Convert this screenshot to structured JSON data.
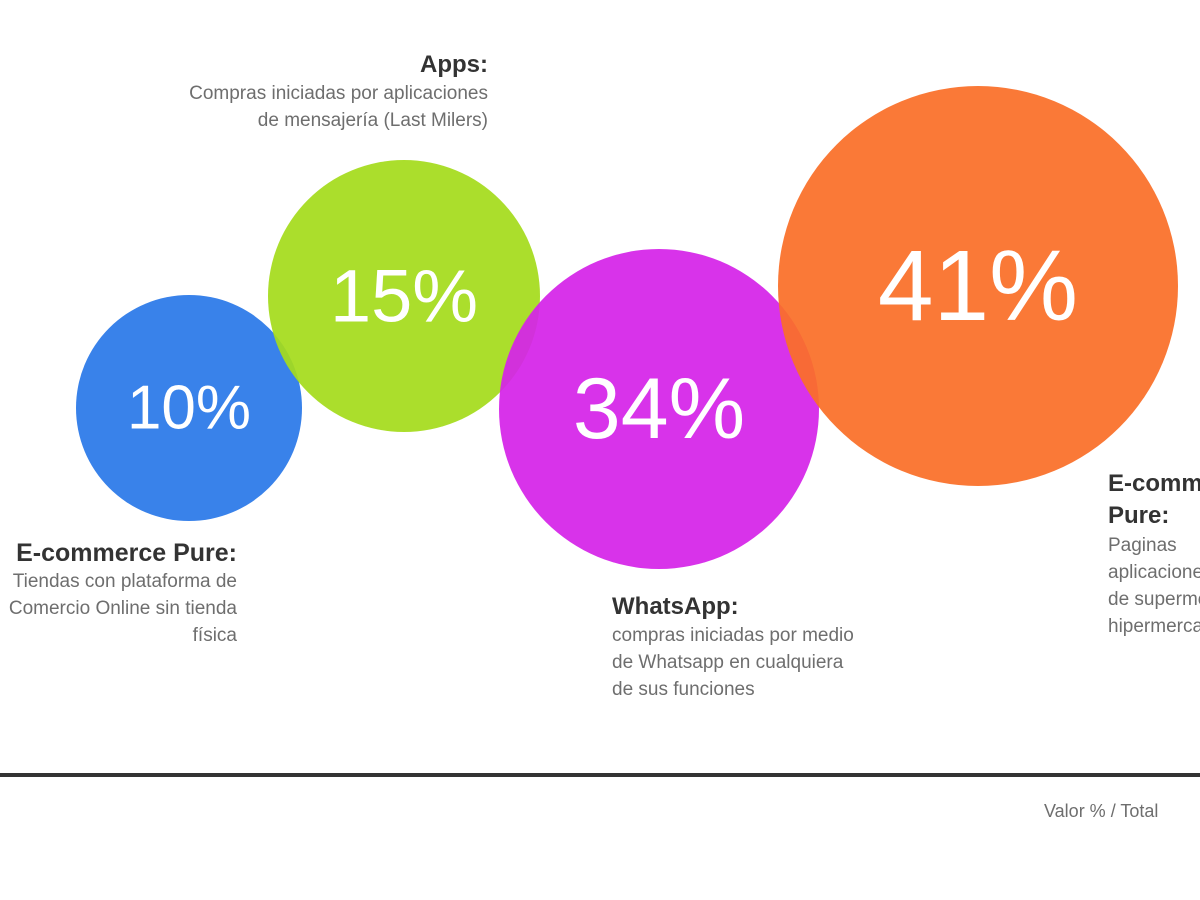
{
  "chart_data": {
    "type": "bubble",
    "series": [
      {
        "value": 10,
        "label": "10%",
        "color": "#2a79e8"
      },
      {
        "value": 15,
        "label": "15%",
        "color": "#a5dc1c"
      },
      {
        "value": 34,
        "label": "34%",
        "color": "#d524e8"
      },
      {
        "value": 41,
        "label": "41%",
        "color": "#fa6f28"
      }
    ],
    "annotations": {
      "apps": {
        "title": "Apps:",
        "lines": [
          "Compras iniciadas por aplicaciones",
          "de mensajería (Last Milers)"
        ]
      },
      "whatsapp": {
        "title": "WhatsApp:",
        "lines": [
          "compras iniciadas por medio",
          "de Whatsapp en cualquiera",
          "de sus funciones"
        ]
      },
      "ecommerce_pure": {
        "title": "E-commerce Pure:",
        "lines": [
          "Tiendas con plataforma de",
          "Comercio Online sin tienda",
          "física"
        ]
      },
      "ecommerce_retail": {
        "title_lines": [
          "E-commerce",
          "Pure:"
        ],
        "lines": [
          "Paginas",
          "aplicaciones",
          "de supermercados",
          "hipermercados"
        ]
      }
    },
    "footnote": "Valor % / Total"
  }
}
